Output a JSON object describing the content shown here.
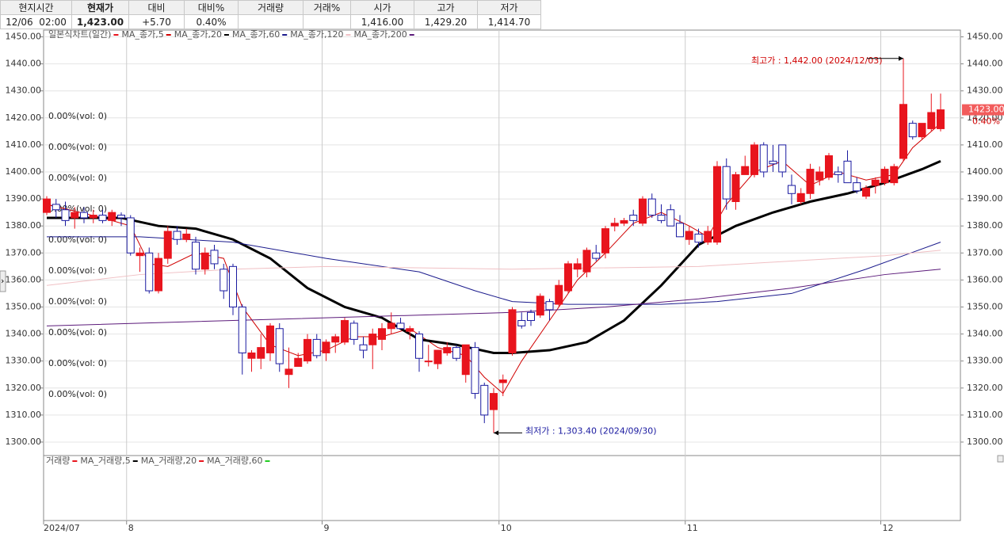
{
  "quote": {
    "headers": [
      "현지시간",
      "현재가",
      "대비",
      "대비%",
      "거래량",
      "거래%",
      "시가",
      "고가",
      "저가"
    ],
    "time": "12/06  02:00",
    "price": "1,423.00",
    "change": "+5.70",
    "change_pct": "0.40%",
    "open": "1,416.00",
    "high": "1,429.20",
    "low": "1,414.70"
  },
  "chart_data": {
    "type": "candlestick",
    "title": "일본식차트(일간)",
    "up_color": "#e8141d",
    "down_color": "#1a1aa0",
    "title_color": "#e8141d",
    "categories": [
      "2024/07",
      null,
      null,
      null,
      null,
      null,
      null,
      null,
      null,
      "8",
      null,
      null,
      null,
      null,
      null,
      null,
      null,
      null,
      null,
      null,
      null,
      null,
      null,
      null,
      null,
      null,
      null,
      null,
      null,
      null,
      "9",
      null,
      null,
      null,
      null,
      null,
      null,
      null,
      null,
      null,
      null,
      null,
      null,
      null,
      null,
      null,
      null,
      null,
      null,
      "10",
      null,
      null,
      null,
      null,
      null,
      null,
      null,
      null,
      null,
      null,
      null,
      null,
      null,
      null,
      null,
      null,
      null,
      null,
      null,
      "11",
      null,
      null,
      null,
      null,
      null,
      null,
      null,
      null,
      null,
      null,
      null,
      null,
      null,
      null,
      null,
      null,
      null,
      null,
      null,
      null,
      "12",
      null,
      null,
      null,
      null,
      null
    ],
    "ohlc": [
      [
        1385,
        1391,
        1384,
        1390
      ],
      [
        1388,
        1390,
        1383,
        1386
      ],
      [
        1386,
        1389,
        1380,
        1382
      ],
      [
        1383,
        1387,
        1379,
        1385
      ],
      [
        1385,
        1387,
        1381,
        1383
      ],
      [
        1383,
        1386,
        1381,
        1384
      ],
      [
        1384,
        1386,
        1381,
        1382
      ],
      [
        1382,
        1386,
        1380,
        1385
      ],
      [
        1384,
        1385,
        1380,
        1383
      ],
      [
        1383,
        1384,
        1369,
        1370
      ],
      [
        1369,
        1372,
        1363,
        1370
      ],
      [
        1370,
        1372,
        1355,
        1356
      ],
      [
        1356,
        1370,
        1355,
        1368
      ],
      [
        1368,
        1380,
        1366,
        1378
      ],
      [
        1378,
        1380,
        1373,
        1375
      ],
      [
        1375,
        1379,
        1374,
        1377
      ],
      [
        1374,
        1376,
        1362,
        1364
      ],
      [
        1364,
        1372,
        1362,
        1370
      ],
      [
        1371,
        1373,
        1364,
        1366
      ],
      [
        1364,
        1366,
        1353,
        1356
      ],
      [
        1365,
        1366,
        1347,
        1350
      ],
      [
        1350,
        1351,
        1325,
        1333
      ],
      [
        1331,
        1334,
        1326,
        1333
      ],
      [
        1331,
        1340,
        1327,
        1335
      ],
      [
        1333,
        1344,
        1330,
        1343
      ],
      [
        1342,
        1344,
        1326,
        1329
      ],
      [
        1325,
        1335,
        1320,
        1327
      ],
      [
        1328,
        1333,
        1328,
        1331
      ],
      [
        1330,
        1340,
        1329,
        1338
      ],
      [
        1338,
        1340,
        1331,
        1332
      ],
      [
        1333,
        1338,
        1330,
        1337
      ],
      [
        1337,
        1340,
        1333,
        1339
      ],
      [
        1337,
        1346,
        1336,
        1345
      ],
      [
        1344,
        1345,
        1336,
        1338
      ],
      [
        1336,
        1339,
        1331,
        1334
      ],
      [
        1336,
        1342,
        1327,
        1340
      ],
      [
        1338,
        1344,
        1334,
        1342
      ],
      [
        1342,
        1348,
        1340,
        1344
      ],
      [
        1344,
        1346,
        1342,
        1342
      ],
      [
        1341,
        1343,
        1338,
        1342
      ],
      [
        1340,
        1341,
        1326,
        1331
      ],
      [
        1330,
        1336,
        1328,
        1330
      ],
      [
        1329,
        1334,
        1327,
        1334
      ],
      [
        1333,
        1337,
        1332,
        1335
      ],
      [
        1335,
        1336,
        1330,
        1331
      ],
      [
        1325,
        1336,
        1322,
        1336
      ],
      [
        1335,
        1337,
        1316,
        1318
      ],
      [
        1321,
        1322,
        1307,
        1310
      ],
      [
        1312,
        1320,
        1303.4,
        1318
      ],
      [
        1322,
        1325,
        1317,
        1323
      ],
      [
        1333,
        1350,
        1332,
        1349
      ],
      [
        1345,
        1348,
        1342,
        1343
      ],
      [
        1348,
        1349,
        1343,
        1345
      ],
      [
        1347,
        1355,
        1346,
        1354
      ],
      [
        1352,
        1353,
        1345,
        1349
      ],
      [
        1351,
        1360,
        1350,
        1358
      ],
      [
        1356,
        1367,
        1355,
        1366
      ],
      [
        1364,
        1368,
        1361,
        1366
      ],
      [
        1363,
        1372,
        1361,
        1371
      ],
      [
        1370,
        1373,
        1367,
        1368
      ],
      [
        1370,
        1380,
        1368,
        1379
      ],
      [
        1380,
        1383,
        1378,
        1381
      ],
      [
        1381,
        1383,
        1380,
        1382
      ],
      [
        1384,
        1386,
        1380,
        1382
      ],
      [
        1381,
        1391,
        1380,
        1390
      ],
      [
        1390,
        1392,
        1383,
        1384
      ],
      [
        1384,
        1388,
        1381,
        1382
      ],
      [
        1386,
        1388,
        1380,
        1380
      ],
      [
        1381,
        1384,
        1376,
        1376
      ],
      [
        1375,
        1380,
        1373,
        1378
      ],
      [
        1377,
        1379,
        1372,
        1374
      ],
      [
        1374,
        1380,
        1373,
        1378
      ],
      [
        1374,
        1404,
        1373,
        1402
      ],
      [
        1402,
        1405,
        1386,
        1390
      ],
      [
        1389,
        1400,
        1386,
        1399
      ],
      [
        1399,
        1406,
        1399,
        1402
      ],
      [
        1399,
        1411,
        1398,
        1410
      ],
      [
        1410,
        1411,
        1398,
        1400
      ],
      [
        1404,
        1410,
        1400,
        1403
      ],
      [
        1410,
        1410,
        1398,
        1400
      ],
      [
        1395,
        1399,
        1388,
        1392
      ],
      [
        1389,
        1394,
        1388,
        1392
      ],
      [
        1392,
        1403,
        1390,
        1401
      ],
      [
        1397,
        1402,
        1395,
        1400
      ],
      [
        1398,
        1407,
        1397,
        1406
      ],
      [
        1400,
        1402,
        1396,
        1399
      ],
      [
        1404,
        1408,
        1396,
        1396
      ],
      [
        1396,
        1398,
        1392,
        1393
      ],
      [
        1391,
        1395,
        1390,
        1394
      ],
      [
        1395,
        1398,
        1392,
        1397
      ],
      [
        1396,
        1402,
        1395,
        1401
      ],
      [
        1396,
        1403,
        1395,
        1402
      ],
      [
        1405,
        1442,
        1404,
        1425
      ],
      [
        1418,
        1419,
        1412,
        1413
      ],
      [
        1413,
        1418,
        1412,
        1418
      ],
      [
        1416,
        1429,
        1415,
        1422
      ],
      [
        1416,
        1429,
        1415,
        1423
      ]
    ],
    "series": [
      {
        "name": "MA_종가,5",
        "color": "#d00000",
        "width": 1,
        "x": [
          0,
          6,
          9,
          11,
          13,
          16,
          19,
          21,
          24,
          27,
          30,
          33,
          36,
          39,
          42,
          45,
          47,
          49,
          51,
          54,
          57,
          60,
          63,
          66,
          69,
          71,
          73,
          76,
          79,
          82,
          85,
          88,
          91,
          93,
          96
        ],
        "values": [
          1388,
          1383,
          1380,
          1366,
          1365,
          1370,
          1368,
          1350,
          1336,
          1332,
          1334,
          1339,
          1339,
          1342,
          1335,
          1332,
          1324,
          1318,
          1330,
          1345,
          1360,
          1370,
          1381,
          1385,
          1380,
          1376,
          1388,
          1400,
          1404,
          1395,
          1400,
          1397,
          1399,
          1409,
          1418
        ]
      },
      {
        "name": "MA_종가,20",
        "color": "#000000",
        "width": 3,
        "x": [
          0,
          8,
          12,
          16,
          20,
          24,
          28,
          32,
          36,
          40,
          44,
          48,
          50,
          54,
          58,
          62,
          66,
          70,
          74,
          78,
          82,
          86,
          90,
          94,
          96
        ],
        "values": [
          1383,
          1383,
          1380,
          1379,
          1375,
          1368,
          1357,
          1350,
          1346,
          1338,
          1336,
          1333,
          1333,
          1334,
          1337,
          1345,
          1358,
          1373,
          1380,
          1385,
          1389,
          1392,
          1396,
          1401,
          1404
        ]
      },
      {
        "name": "MA_종가,60",
        "color": "#1a1a8c",
        "width": 1,
        "x": [
          0,
          10,
          20,
          30,
          40,
          46,
          50,
          56,
          66,
          72,
          80,
          88,
          96
        ],
        "values": [
          1376,
          1376,
          1374,
          1368,
          1363,
          1356,
          1352,
          1351,
          1351,
          1352,
          1355,
          1364,
          1374
        ]
      },
      {
        "name": "MA_종가,120",
        "color": "#f0c0c4",
        "width": 1,
        "x": [
          0,
          10,
          20,
          30,
          50,
          70,
          80,
          90,
          96
        ],
        "values": [
          1358,
          1362,
          1364,
          1365,
          1364,
          1365,
          1367,
          1369,
          1371
        ]
      },
      {
        "name": "MA_종가,200",
        "color": "#5b1a7a",
        "width": 1,
        "x": [
          0,
          20,
          40,
          50,
          60,
          70,
          80,
          90,
          96
        ],
        "values": [
          1343,
          1345,
          1347,
          1348,
          1350,
          1353,
          1357,
          1362,
          1364
        ]
      }
    ],
    "ylim": [
      1295,
      1452.5
    ],
    "yticks": [
      {
        "value": 1300,
        "label": "1300.00"
      },
      {
        "value": 1310,
        "label": "1310.00"
      },
      {
        "value": 1320,
        "label": "1320.00"
      },
      {
        "value": 1330,
        "label": "1330.00"
      },
      {
        "value": 1340,
        "label": "1340.00"
      },
      {
        "value": 1350,
        "label": "1350.00"
      },
      {
        "value": 1360,
        "label": "1360.00"
      },
      {
        "value": 1370,
        "label": "1370.00"
      },
      {
        "value": 1380,
        "label": "1380.00"
      },
      {
        "value": 1390,
        "label": "1390.00"
      },
      {
        "value": 1400,
        "label": "1400.00"
      },
      {
        "value": 1410,
        "label": "1410.00"
      },
      {
        "value": 1420,
        "label": "1420.00"
      },
      {
        "value": 1430,
        "label": "1430.00"
      },
      {
        "value": 1440,
        "label": "1440.00"
      },
      {
        "value": 1450,
        "label": "1450.00"
      }
    ],
    "high_annotation": "최고가 : 1,442.00 (2024/12/03)",
    "low_annotation": "최저가 : 1,303.40 (2024/09/30)",
    "last_price": {
      "value": 1423,
      "label": "1423.00"
    },
    "last_change": "0.40%",
    "vol_labels": [
      "0.00%(vol: 0)",
      "0.00%(vol: 0)",
      "0.00%(vol: 0)",
      "0.00%(vol: 0)",
      "0.00%(vol: 0)",
      "0.00%(vol: 0)",
      "0.00%(vol: 0)",
      "0.00%(vol: 0)",
      "0.00%(vol: 0)",
      "0.00%(vol: 0)"
    ],
    "volume_legend": [
      {
        "name": "거래량",
        "color": "#e8141d"
      },
      {
        "name": "MA_거래량,5",
        "color": "#000000"
      },
      {
        "name": "MA_거래량,20",
        "color": "#e8141d"
      },
      {
        "name": "MA_거래량,60",
        "color": "#22cc22"
      }
    ]
  }
}
